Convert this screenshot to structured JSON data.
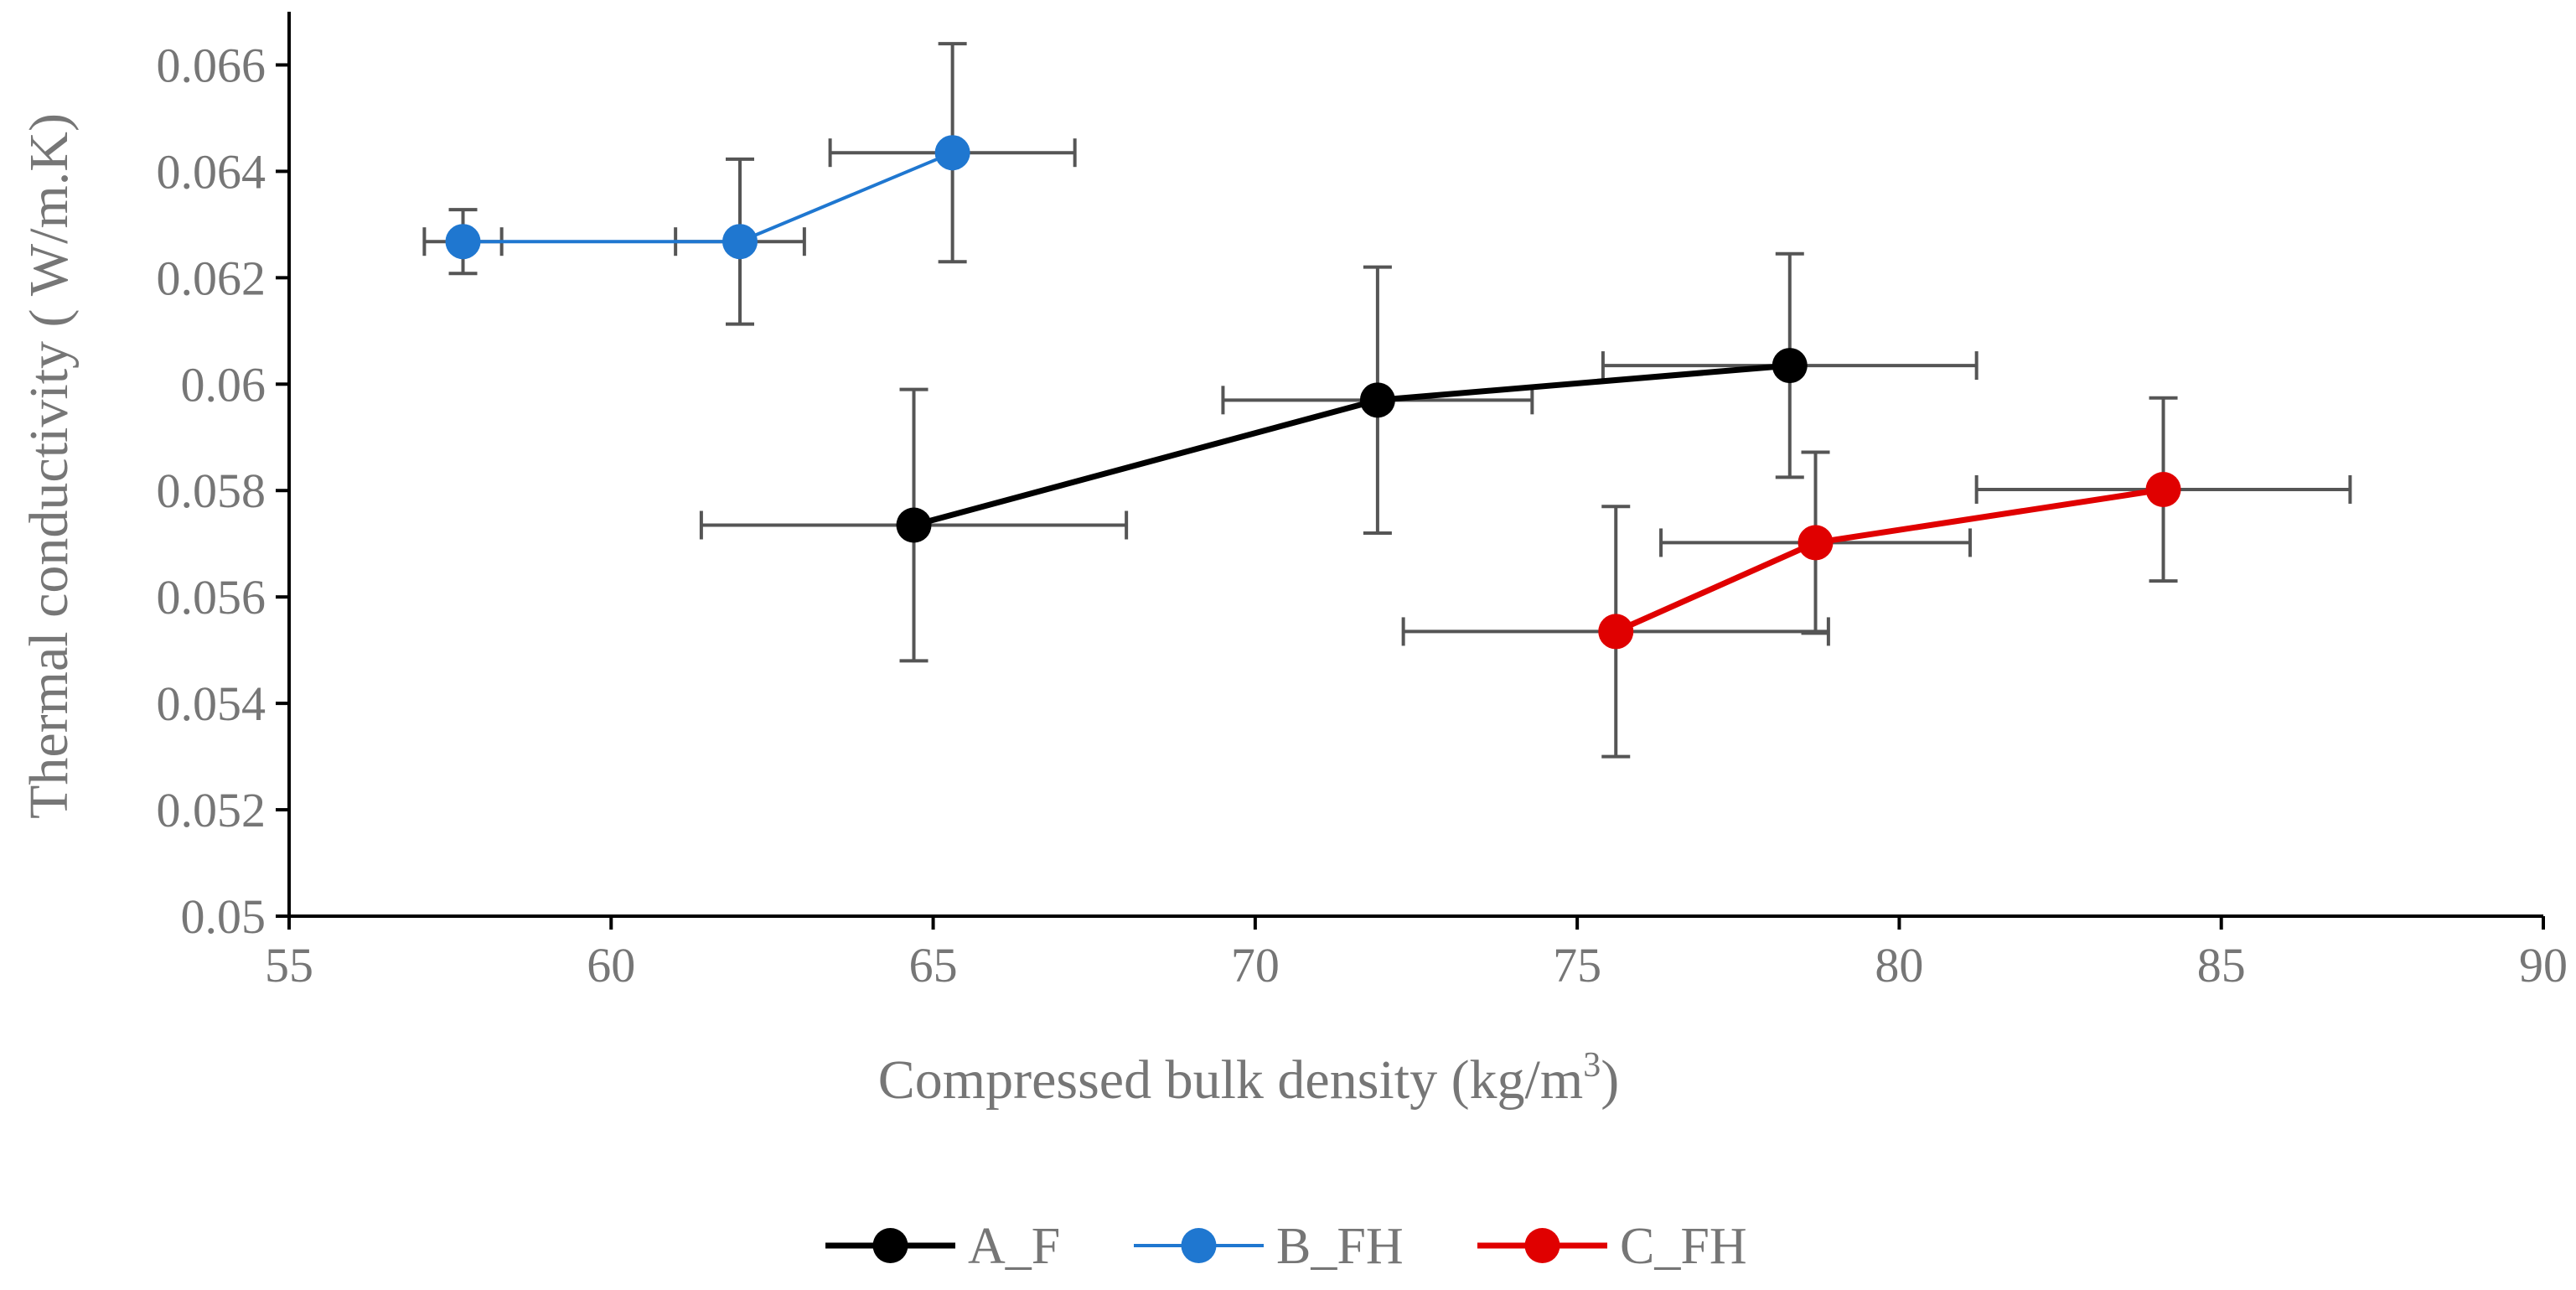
{
  "chart_data": {
    "type": "scatter",
    "title": "",
    "xlabel": "Compressed bulk density (kg/m",
    "xlabel_sup": "3",
    "xlabel_end": ")",
    "ylabel": "Thermal conductivity ( W/m.K)",
    "xlim": [
      55,
      90
    ],
    "ylim": [
      0.05,
      0.067
    ],
    "xticks": [
      55,
      60,
      65,
      70,
      75,
      80,
      85,
      90
    ],
    "xtick_labels": [
      "55",
      "60",
      "65",
      "70",
      "75",
      "80",
      "85",
      "90"
    ],
    "yticks": [
      0.05,
      0.052,
      0.054,
      0.056,
      0.058,
      0.06,
      0.062,
      0.064,
      0.066
    ],
    "ytick_labels": [
      "0.05",
      "0.052",
      "0.054",
      "0.056",
      "0.058",
      "0.06",
      "0.062",
      "0.064",
      "0.066"
    ],
    "grid": false,
    "legend_position": "bottom",
    "series": [
      {
        "name": "A_F",
        "color": "#000000",
        "line": "thick",
        "points": [
          {
            "x": 64.7,
            "y": 0.05735,
            "xerr": 3.3,
            "yerr": 0.00255
          },
          {
            "x": 71.9,
            "y": 0.0597,
            "xerr": 2.4,
            "yerr": 0.0025
          },
          {
            "x": 78.3,
            "y": 0.06035,
            "xerr": 2.9,
            "yerr": 0.0021
          }
        ]
      },
      {
        "name": "B_FH",
        "color": "#1f77d0",
        "line": "thin",
        "points": [
          {
            "x": 57.7,
            "y": 0.06268,
            "xerr": 0.6,
            "yerr": 0.0006
          },
          {
            "x": 62.0,
            "y": 0.06268,
            "xerr": 1.0,
            "yerr": 0.00155
          },
          {
            "x": 65.3,
            "y": 0.06435,
            "xerr": 1.9,
            "yerr": 0.00205
          }
        ]
      },
      {
        "name": "C_FH",
        "color": "#e00000",
        "line": "thick",
        "points": [
          {
            "x": 75.6,
            "y": 0.05535,
            "xerr": 3.3,
            "yerr": 0.00235
          },
          {
            "x": 78.7,
            "y": 0.05702,
            "xerr": 2.4,
            "yerr": 0.0017
          },
          {
            "x": 84.1,
            "y": 0.05802,
            "xerr": 2.9,
            "yerr": 0.00172
          }
        ]
      }
    ]
  }
}
